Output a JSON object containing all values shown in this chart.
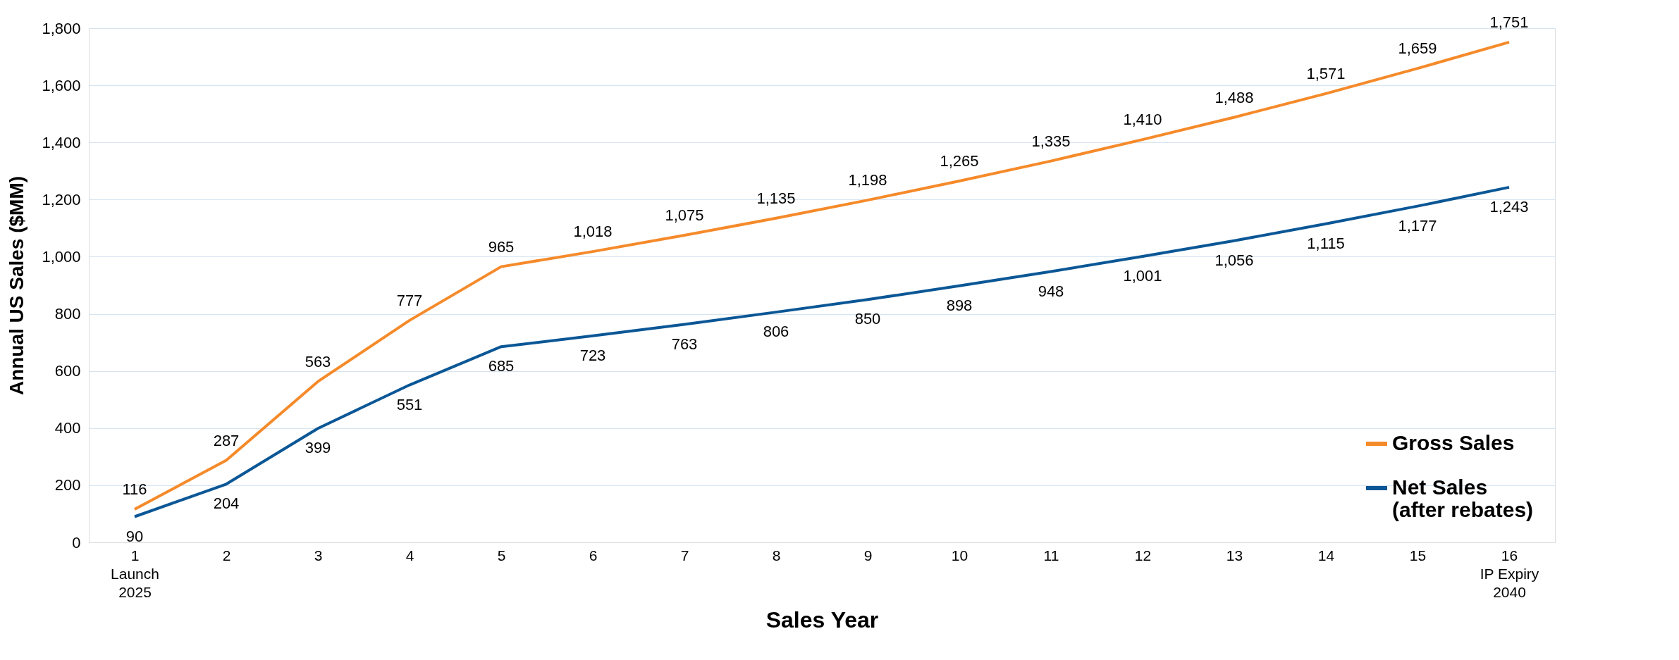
{
  "chart_data": {
    "type": "line",
    "xlabel": "Sales Year",
    "ylabel": "Annual US Sales ($MM)",
    "categories": [
      "1\nLaunch\n2025",
      "2",
      "3",
      "4",
      "5",
      "6",
      "7",
      "8",
      "9",
      "10",
      "11",
      "12",
      "13",
      "14",
      "15",
      "16\nIP Expiry\n2040"
    ],
    "series": [
      {
        "name": "Gross Sales",
        "color": "#f58a2a",
        "values": [
          116,
          287,
          563,
          777,
          965,
          1018,
          1075,
          1135,
          1198,
          1265,
          1335,
          1410,
          1488,
          1571,
          1659,
          1751
        ],
        "value_labels": [
          "116",
          "287",
          "563",
          "777",
          "965",
          "1,018",
          "1,075",
          "1,135",
          "1,198",
          "1,265",
          "1,335",
          "1,410",
          "1,488",
          "1,571",
          "1,659",
          "1,751"
        ]
      },
      {
        "name": "Net Sales\n(after rebates)",
        "color": "#0b5796",
        "values": [
          90,
          204,
          399,
          551,
          685,
          723,
          763,
          806,
          850,
          898,
          948,
          1001,
          1056,
          1115,
          1177,
          1243
        ],
        "value_labels": [
          "90",
          "204",
          "399",
          "551",
          "685",
          "723",
          "763",
          "806",
          "850",
          "898",
          "948",
          "1,001",
          "1,056",
          "1,115",
          "1,177",
          "1,243"
        ]
      }
    ],
    "ylim": [
      0,
      1800
    ],
    "yticks": [
      0,
      200,
      400,
      600,
      800,
      {
        "value": 1000,
        "label": "1,000"
      },
      {
        "value": 1200,
        "label": "1,200"
      },
      {
        "value": 1400,
        "label": "1,400"
      },
      {
        "value": 1600,
        "label": "1,600"
      },
      {
        "value": 1800,
        "label": "1,800"
      }
    ],
    "grid": "y",
    "legend": "bottom right",
    "marker": "none",
    "line_style": "solid"
  }
}
